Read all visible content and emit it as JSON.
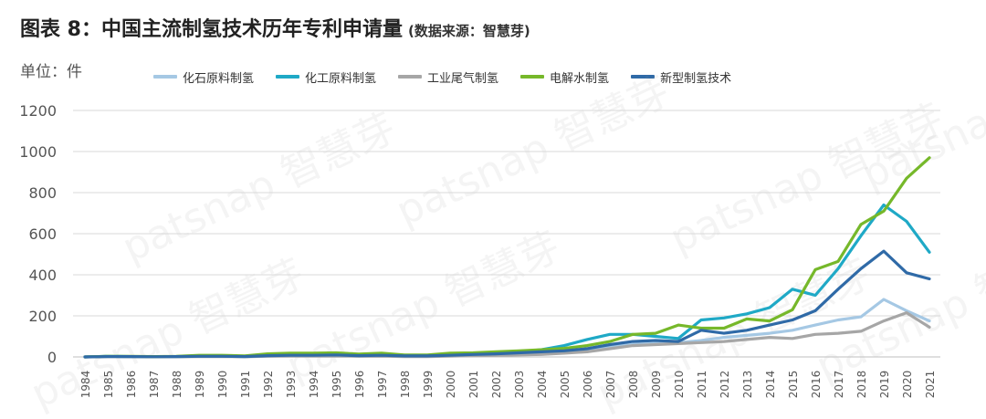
{
  "header": {
    "title": "图表 8：中国主流制氢技术历年专利申请量",
    "source": "(数据来源：智慧芽)",
    "unit": "单位：件"
  },
  "watermark": "patsnap 智慧芽",
  "chart_data": {
    "type": "line",
    "title": "图表 8：中国主流制氢技术历年专利申请量",
    "ylabel": "单位：件",
    "xlabel": "",
    "ylim": [
      0,
      1200
    ],
    "yticks": [
      0,
      200,
      400,
      600,
      800,
      1000,
      1200
    ],
    "grid": true,
    "legend_position": "top",
    "categories": [
      "1984",
      "1985",
      "1986",
      "1987",
      "1988",
      "1989",
      "1990",
      "1991",
      "1992",
      "1993",
      "1994",
      "1995",
      "1996",
      "1997",
      "1998",
      "1999",
      "2000",
      "2001",
      "2002",
      "2003",
      "2004",
      "2005",
      "2006",
      "2007",
      "2008",
      "2009",
      "2010",
      "2011",
      "2012",
      "2013",
      "2014",
      "2015",
      "2016",
      "2017",
      "2018",
      "2019",
      "2020",
      "2021"
    ],
    "series": [
      {
        "name": "化石原料制氢",
        "color": "#a5c8e4",
        "values": [
          0,
          3,
          2,
          1,
          1,
          3,
          3,
          2,
          5,
          6,
          6,
          6,
          5,
          6,
          4,
          4,
          6,
          8,
          10,
          15,
          18,
          25,
          35,
          50,
          60,
          65,
          70,
          80,
          95,
          105,
          115,
          130,
          155,
          180,
          195,
          280,
          225,
          175
        ]
      },
      {
        "name": "化工原料制氢",
        "color": "#1fa9c6",
        "values": [
          0,
          3,
          2,
          1,
          2,
          4,
          4,
          3,
          8,
          10,
          10,
          12,
          8,
          10,
          6,
          6,
          12,
          15,
          20,
          25,
          35,
          55,
          85,
          110,
          110,
          100,
          90,
          180,
          190,
          210,
          240,
          330,
          300,
          430,
          590,
          740,
          660,
          510
        ]
      },
      {
        "name": "工业尾气制氢",
        "color": "#a6a6a6",
        "values": [
          0,
          2,
          1,
          1,
          1,
          2,
          2,
          1,
          3,
          4,
          4,
          4,
          3,
          4,
          2,
          2,
          4,
          6,
          8,
          10,
          12,
          18,
          25,
          40,
          55,
          60,
          65,
          70,
          75,
          85,
          95,
          90,
          110,
          115,
          125,
          175,
          215,
          145
        ]
      },
      {
        "name": "电解水制氢",
        "color": "#76b82a",
        "values": [
          0,
          3,
          3,
          2,
          3,
          8,
          8,
          5,
          15,
          18,
          18,
          20,
          14,
          18,
          10,
          10,
          18,
          20,
          25,
          30,
          35,
          42,
          55,
          75,
          110,
          115,
          155,
          140,
          140,
          185,
          175,
          230,
          425,
          465,
          645,
          710,
          870,
          970
        ]
      },
      {
        "name": "新型制氢技术",
        "color": "#2f6aa7",
        "values": [
          0,
          2,
          2,
          1,
          2,
          3,
          3,
          2,
          6,
          8,
          8,
          10,
          6,
          8,
          5,
          5,
          8,
          12,
          15,
          20,
          25,
          30,
          40,
          60,
          75,
          80,
          75,
          130,
          115,
          130,
          155,
          180,
          225,
          330,
          430,
          515,
          410,
          380
        ]
      }
    ]
  }
}
